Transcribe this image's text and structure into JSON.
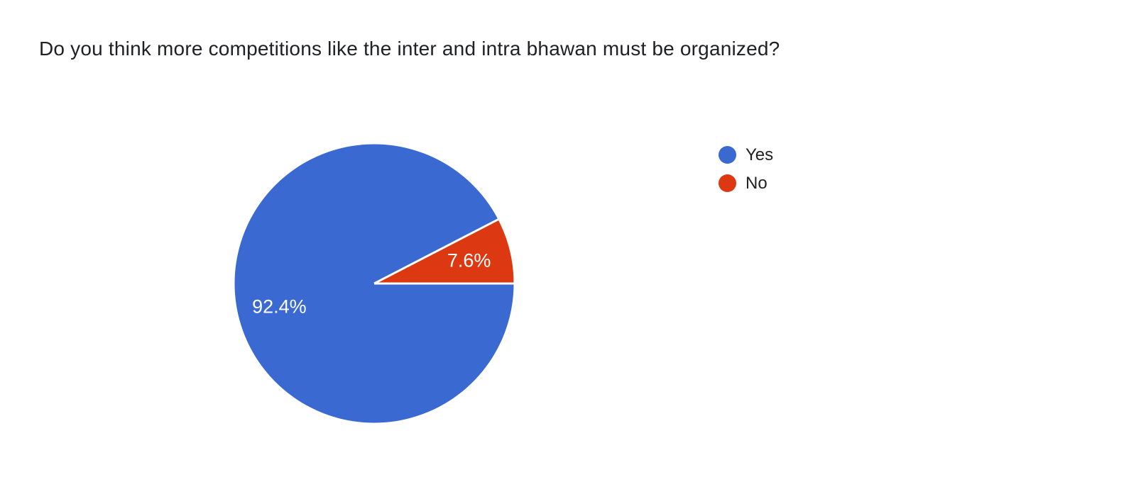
{
  "chart_data": {
    "type": "pie",
    "title": "Do you think more competitions like the inter and intra bhawan must be organized?",
    "labels": [
      "Yes",
      "No"
    ],
    "values": [
      92.4,
      7.6
    ],
    "value_labels": [
      "92.4%",
      "7.6%"
    ],
    "colors": [
      "#3A69D2",
      "#DC3912"
    ],
    "slice_label_color": "#ffffff",
    "background_color": "#ffffff",
    "title_color": "#202124",
    "legend_position": "right",
    "start_angle_deg": 0,
    "direction": "clockwise"
  }
}
